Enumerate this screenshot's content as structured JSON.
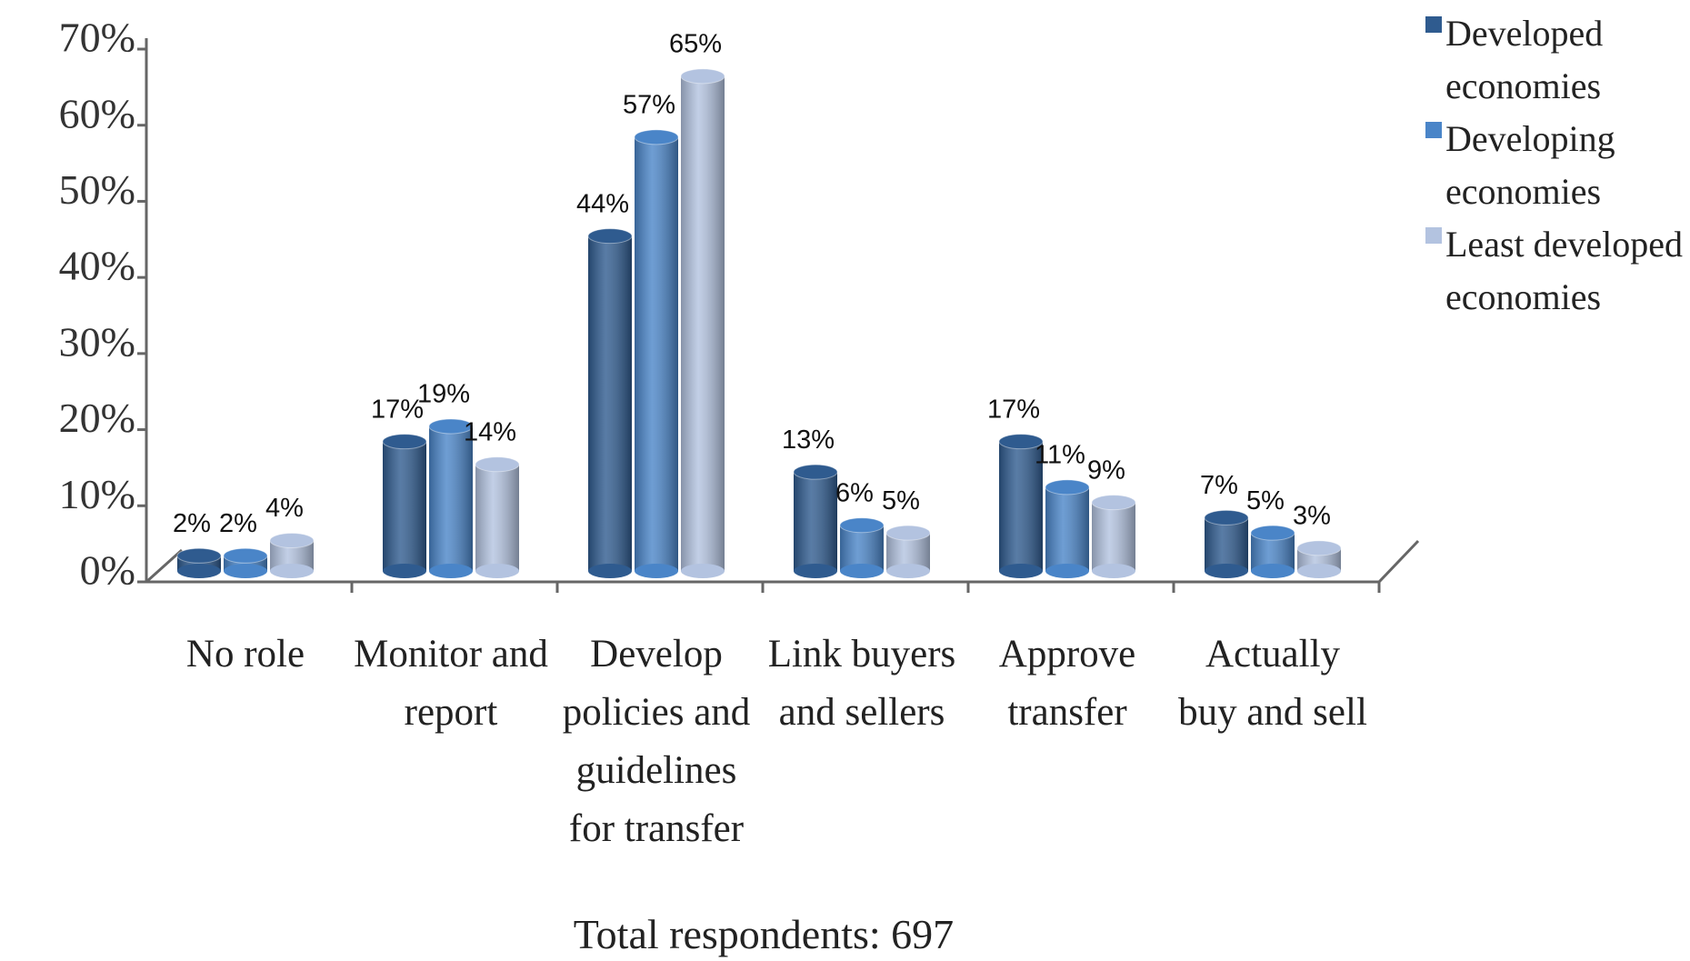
{
  "chart_data": {
    "type": "bar",
    "categories": [
      "No role",
      "Monitor and report",
      "Develop policies and guidelines for transfer",
      "Link buyers and sellers",
      "Approve transfer",
      "Actually buy and sell"
    ],
    "series": [
      {
        "name": "Developed economies",
        "color": "#2f5b8f",
        "values": [
          2,
          17,
          44,
          13,
          17,
          7
        ],
        "value_labels": [
          "2%",
          "17%",
          "44%",
          "13%",
          "17%",
          "7%"
        ]
      },
      {
        "name": "Developing economies",
        "color": "#4a85c8",
        "values": [
          2,
          19,
          57,
          6,
          11,
          5
        ],
        "value_labels": [
          "2%",
          "19%",
          "57%",
          "6%",
          "11%",
          "5%"
        ]
      },
      {
        "name": "Least developed economies",
        "color": "#b3c3e0",
        "values": [
          4,
          14,
          65,
          5,
          9,
          3
        ],
        "value_labels": [
          "4%",
          "14%",
          "65%",
          "5%",
          "9%",
          "3%"
        ]
      }
    ],
    "ylim": [
      0,
      70
    ],
    "yticks": [
      {
        "value": 0,
        "label": "0%"
      },
      {
        "value": 10,
        "label": "10%"
      },
      {
        "value": 20,
        "label": "20%"
      },
      {
        "value": 30,
        "label": "30%"
      },
      {
        "value": 40,
        "label": "40%"
      },
      {
        "value": 50,
        "label": "50%"
      },
      {
        "value": 60,
        "label": "60%"
      },
      {
        "value": 70,
        "label": "70%"
      }
    ],
    "annotation": "Total respondents: 697",
    "legend": "right"
  }
}
